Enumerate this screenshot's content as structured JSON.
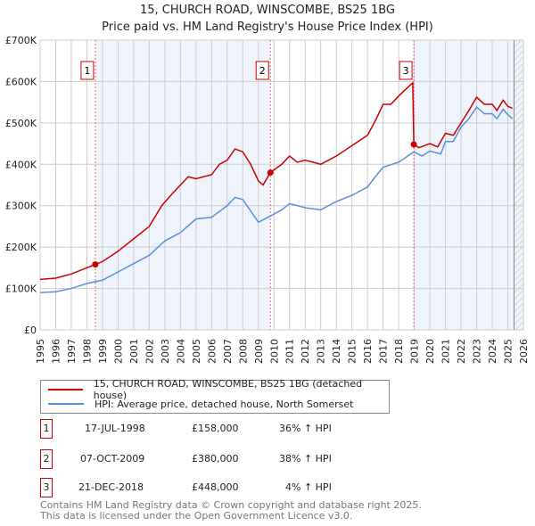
{
  "chart_data": {
    "type": "line",
    "title": "15, CHURCH ROAD, WINSCOMBE, BS25 1BG",
    "subtitle": "Price paid vs. HM Land Registry's House Price Index (HPI)",
    "xlim": [
      1995,
      2026
    ],
    "ylim": [
      0,
      700000
    ],
    "y_ticks": [
      "£0",
      "£100K",
      "£200K",
      "£300K",
      "£400K",
      "£500K",
      "£600K",
      "£700K"
    ],
    "x_ticks": [
      "1995",
      "1996",
      "1997",
      "1998",
      "1999",
      "2000",
      "2001",
      "2002",
      "2003",
      "2004",
      "2005",
      "2006",
      "2007",
      "2008",
      "2009",
      "2010",
      "2011",
      "2012",
      "2013",
      "2014",
      "2015",
      "2016",
      "2017",
      "2018",
      "2019",
      "2020",
      "2021",
      "2022",
      "2023",
      "2024",
      "2025",
      "2026"
    ],
    "grid": true,
    "series": [
      {
        "name": "15, CHURCH ROAD, WINSCOMBE, BS25 1BG (detached house)",
        "color": "#cc0000",
        "x": [
          1995,
          1996,
          1997,
          1998,
          1998.54,
          1999,
          2000,
          2001,
          2002,
          2002.8,
          2003.5,
          2004,
          2004.5,
          2005,
          2006,
          2006.5,
          2007,
          2007.5,
          2008,
          2008.5,
          2009,
          2009.3,
          2009.77,
          2010.5,
          2011,
          2011.5,
          2012,
          2013,
          2014,
          2015,
          2016,
          2016.5,
          2017,
          2017.5,
          2018,
          2018.9,
          2018.97,
          2019.3,
          2020,
          2020.5,
          2021,
          2021.5,
          2022,
          2022.5,
          2023,
          2023.5,
          2024,
          2024.3,
          2024.7,
          2025,
          2025.3
        ],
        "y": [
          122000,
          125000,
          135000,
          150000,
          158000,
          165000,
          190000,
          220000,
          250000,
          300000,
          330000,
          350000,
          370000,
          365000,
          375000,
          400000,
          410000,
          437000,
          430000,
          400000,
          360000,
          350000,
          380000,
          400000,
          420000,
          405000,
          410000,
          400000,
          420000,
          445000,
          470000,
          505000,
          545000,
          545000,
          565000,
          597000,
          448000,
          440000,
          450000,
          442000,
          475000,
          470000,
          500000,
          530000,
          562000,
          545000,
          545000,
          530000,
          555000,
          540000,
          535000
        ]
      },
      {
        "name": "HPI: Average price, detached house, North Somerset",
        "color": "#5b8fd6",
        "x": [
          1995,
          1996,
          1997,
          1998,
          1999,
          2000,
          2001,
          2002,
          2003,
          2004,
          2005,
          2006,
          2007,
          2007.5,
          2008,
          2009,
          2009.77,
          2010.5,
          2011,
          2012,
          2013,
          2014,
          2015,
          2016,
          2016.5,
          2017,
          2018,
          2018.97,
          2019.5,
          2020,
          2020.7,
          2021,
          2021.5,
          2022,
          2022.5,
          2023,
          2023.5,
          2024,
          2024.3,
          2024.7,
          2025,
          2025.3
        ],
        "y": [
          90000,
          92000,
          100000,
          112000,
          120000,
          140000,
          160000,
          180000,
          215000,
          235000,
          268000,
          272000,
          300000,
          320000,
          315000,
          260000,
          275000,
          290000,
          305000,
          295000,
          290000,
          310000,
          325000,
          345000,
          370000,
          393000,
          405000,
          430000,
          420000,
          432000,
          425000,
          455000,
          455000,
          490000,
          510000,
          538000,
          522000,
          522000,
          510000,
          533000,
          520000,
          510000
        ]
      }
    ],
    "sales": [
      {
        "label": "1",
        "x": 1998.54,
        "price": 158000,
        "date": "17-JUL-1998",
        "price_text": "£158,000",
        "hpi_text": "36% ↑ HPI"
      },
      {
        "label": "2",
        "x": 2009.77,
        "price": 380000,
        "date": "07-OCT-2009",
        "price_text": "£380,000",
        "hpi_text": "38% ↑ HPI"
      },
      {
        "label": "3",
        "x": 2018.97,
        "price": 448000,
        "date": "21-DEC-2018",
        "price_text": "£448,000",
        "hpi_text": "4% ↑ HPI"
      }
    ]
  },
  "footer": [
    "Contains HM Land Registry data © Crown copyright and database right 2025.",
    "This data is licensed under the Open Government Licence v3.0."
  ]
}
